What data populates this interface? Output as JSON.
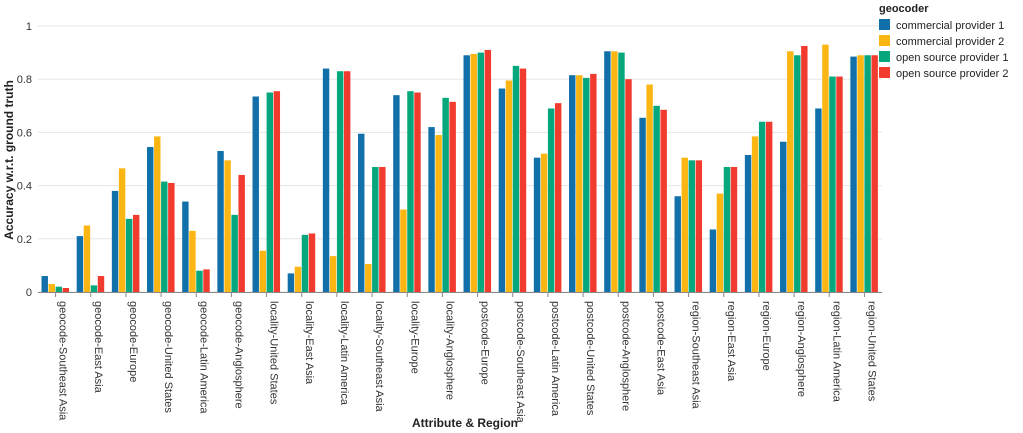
{
  "chart_data": {
    "type": "bar",
    "xlabel": "Attribute & Region",
    "ylabel": "Accuracy w.r.t. ground truth",
    "ylim": [
      0,
      1
    ],
    "yticks": [
      "0",
      "0.2",
      "0.4",
      "0.6",
      "0.8",
      "1"
    ],
    "grid": true,
    "legend": {
      "title": "geocoder",
      "position": "top-right"
    },
    "categories": [
      "geocode-Southeast Asia",
      "geocode-East Asia",
      "geocode-Europe",
      "geocode-United States",
      "geocode-Latin America",
      "geocode-Anglosphere",
      "locality-United States",
      "locality-East Asia",
      "locality-Latin America",
      "locality-Southeast Asia",
      "locality-Europe",
      "locality-Anglosphere",
      "postcode-Europe",
      "postcode-Southeast Asia",
      "postcode-Latin America",
      "postcode-United States",
      "postcode-Anglosphere",
      "postcode-East Asia",
      "region-Southeast Asia",
      "region-East Asia",
      "region-Europe",
      "region-Anglosphere",
      "region-Latin America",
      "region-United States"
    ],
    "series": [
      {
        "name": "commercial provider 1",
        "color": "#1170aa",
        "values": [
          0.06,
          0.21,
          0.38,
          0.545,
          0.34,
          0.53,
          0.735,
          0.07,
          0.84,
          0.595,
          0.74,
          0.62,
          0.89,
          0.765,
          0.505,
          0.815,
          0.905,
          0.655,
          0.36,
          0.235,
          0.515,
          0.565,
          0.69,
          0.885
        ]
      },
      {
        "name": "commercial provider 2",
        "color": "#fcb613",
        "values": [
          0.03,
          0.25,
          0.465,
          0.585,
          0.23,
          0.495,
          0.155,
          0.095,
          0.135,
          0.105,
          0.31,
          0.59,
          0.895,
          0.795,
          0.52,
          0.815,
          0.905,
          0.78,
          0.505,
          0.37,
          0.585,
          0.905,
          0.93,
          0.89
        ]
      },
      {
        "name": "open source provider 1",
        "color": "#06a77d",
        "values": [
          0.02,
          0.025,
          0.275,
          0.415,
          0.08,
          0.29,
          0.75,
          0.215,
          0.83,
          0.47,
          0.755,
          0.73,
          0.9,
          0.85,
          0.69,
          0.805,
          0.9,
          0.7,
          0.495,
          0.47,
          0.64,
          0.89,
          0.81,
          0.89
        ]
      },
      {
        "name": "open source provider 2",
        "color": "#f23b2f",
        "values": [
          0.015,
          0.06,
          0.29,
          0.41,
          0.085,
          0.44,
          0.755,
          0.22,
          0.83,
          0.47,
          0.75,
          0.715,
          0.91,
          0.84,
          0.71,
          0.82,
          0.8,
          0.685,
          0.495,
          0.47,
          0.64,
          0.925,
          0.81,
          0.89
        ]
      }
    ]
  }
}
